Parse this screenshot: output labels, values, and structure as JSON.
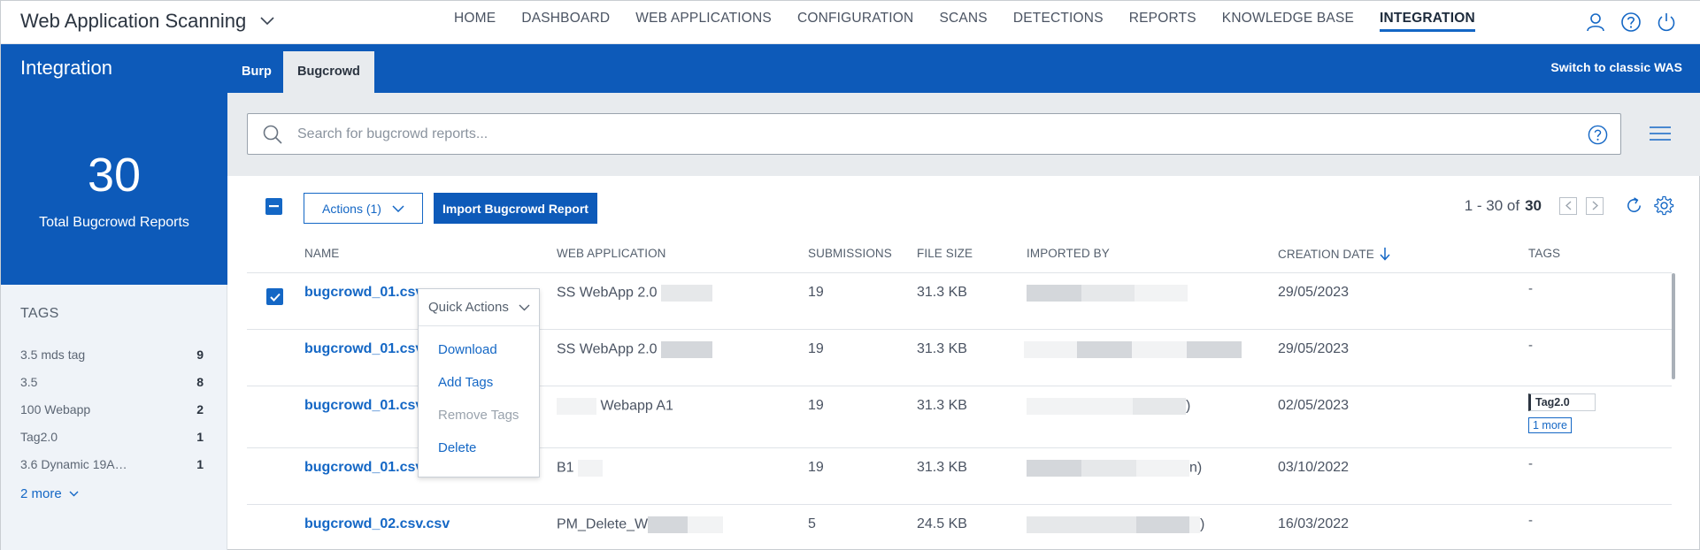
{
  "app": {
    "title": "Web Application Scanning"
  },
  "nav": {
    "items": [
      "HOME",
      "DASHBOARD",
      "WEB APPLICATIONS",
      "CONFIGURATION",
      "SCANS",
      "DETECTIONS",
      "REPORTS",
      "KNOWLEDGE BASE",
      "INTEGRATION"
    ],
    "active": "INTEGRATION",
    "icons": [
      "user-icon",
      "help-icon",
      "power-icon"
    ]
  },
  "band": {
    "title": "Integration",
    "tabs": [
      "Burp",
      "Bugcrowd"
    ],
    "active_tab": "Bugcrowd",
    "switch_link": "Switch to classic WAS"
  },
  "sidebar": {
    "stat_value": "30",
    "stat_label": "Total Bugcrowd Reports",
    "tags_title": "TAGS",
    "tags": [
      {
        "label": "3.5 mds tag",
        "count": "9"
      },
      {
        "label": "3.5",
        "count": "8"
      },
      {
        "label": "100 Webapp",
        "count": "2"
      },
      {
        "label": "Tag2.0",
        "count": "1"
      },
      {
        "label": "3.6 Dynamic 19A…",
        "count": "1"
      }
    ],
    "more_link": "2 more"
  },
  "search": {
    "placeholder": "Search for bugcrowd reports..."
  },
  "toolbar": {
    "actions_label": "Actions (1)",
    "import_label": "Import Bugcrowd Report",
    "pager_range": "1 - 30 of",
    "pager_total": "30"
  },
  "table": {
    "headers": [
      "NAME",
      "WEB APPLICATION",
      "SUBMISSIONS",
      "FILE SIZE",
      "IMPORTED BY",
      "CREATION DATE",
      "TAGS"
    ],
    "rows": [
      {
        "name": "bugcrowd_01.csv",
        "webapp": "SS WebApp 2.0",
        "submissions": "19",
        "file_size": "31.3 KB",
        "imported_by": "",
        "creation_date": "29/05/2023",
        "tags": "-",
        "checked": true
      },
      {
        "name": "bugcrowd_01.csv",
        "webapp": "SS WebApp 2.0",
        "submissions": "19",
        "file_size": "31.3 KB",
        "imported_by": "",
        "creation_date": "29/05/2023",
        "tags": "-",
        "checked": false
      },
      {
        "name": "bugcrowd_01.csv",
        "webapp": "Webapp A1",
        "submissions": "19",
        "file_size": "31.3 KB",
        "imported_by": ")",
        "creation_date": "02/05/2023",
        "tags": "Tag2.0",
        "tags_more": "1 more",
        "checked": false
      },
      {
        "name": "bugcrowd_01.csv",
        "webapp": "B1",
        "submissions": "19",
        "file_size": "31.3 KB",
        "imported_by": "n)",
        "creation_date": "03/10/2022",
        "tags": "-",
        "checked": false
      },
      {
        "name": "bugcrowd_02.csv.csv",
        "webapp": "PM_Delete_W",
        "submissions": "5",
        "file_size": "24.5 KB",
        "imported_by": ")",
        "creation_date": "16/03/2022",
        "tags": "-",
        "checked": false
      }
    ]
  },
  "quick_actions": {
    "title": "Quick Actions",
    "items": [
      "Download",
      "Add Tags",
      "Remove Tags",
      "Delete"
    ],
    "disabled": [
      "Remove Tags"
    ]
  },
  "colors": {
    "brand_blue": "#0d5ab9",
    "link_blue": "#1467c5",
    "panel_gray": "#e8ebee"
  }
}
